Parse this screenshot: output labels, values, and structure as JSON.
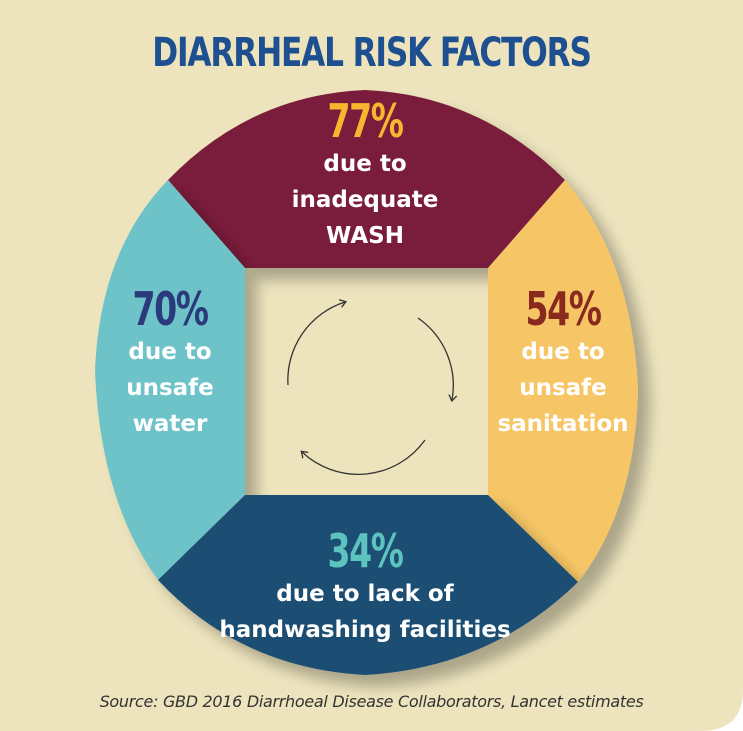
{
  "title": "DIARRHEAL RISK FACTORS",
  "colors": {
    "background": "#ede4bd",
    "title": "#1d4f91",
    "wash": "#7a1f3a",
    "water": "#6ec3c9",
    "sanitation": "#f6c666",
    "handwashing": "#1f4d73",
    "wash_pct": "#f7b62f",
    "water_pct": "#2b3a7a",
    "sanitation_pct": "#8a2a1e",
    "handwashing_pct": "#5cc3bf"
  },
  "segments": {
    "wash": {
      "percent": "77%",
      "description": "due to\ninadequate\nWASH"
    },
    "water": {
      "percent": "70%",
      "description": "due to\nunsafe\nwater"
    },
    "sanitation": {
      "percent": "54%",
      "description": "due to\nunsafe\nsanitation"
    },
    "handwashing": {
      "percent": "34%",
      "description": "due to lack of\nhandwashing facilities"
    }
  },
  "center_icon": "cycle-arrows-icon",
  "source": "Source: GBD 2016 Diarrhoeal Disease Collaborators, Lancet estimates"
}
